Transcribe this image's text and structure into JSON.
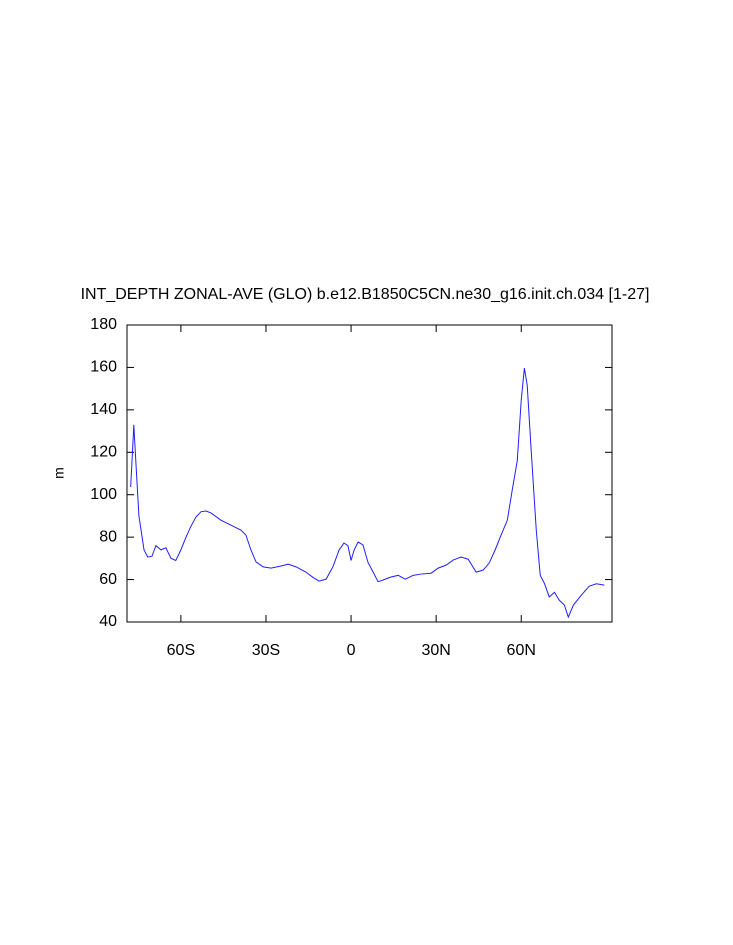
{
  "chart_data": {
    "type": "line",
    "title": "INT_DEPTH ZONAL-AVE (GLO) b.e12.B1850C5CN.ne30_g16.init.ch.034 [1-27]",
    "y_label": "m",
    "x": [
      -77.7,
      -76.6,
      -75.9,
      -74.8,
      -73,
      -71.7,
      -70.2,
      -68.8,
      -67,
      -65.3,
      -63.5,
      -61.8,
      -60,
      -58.2,
      -56.5,
      -54.7,
      -52.9,
      -51.1,
      -49.4,
      -45.9,
      -42.4,
      -38.8,
      -37.1,
      -35.3,
      -33.5,
      -31,
      -28.2,
      -24.7,
      -22.2,
      -19.4,
      -15.9,
      -13.4,
      -11.3,
      -8.8,
      -6.4,
      -4.2,
      -2.5,
      -1.1,
      0,
      1.1,
      2.5,
      4.2,
      6,
      7.8,
      9.5,
      11.3,
      14.1,
      16.6,
      19.1,
      21.9,
      24.7,
      28.2,
      30.7,
      33.5,
      36,
      38.8,
      41.3,
      44.1,
      46.6,
      48.7,
      50.8,
      52.9,
      55.1,
      56.8,
      58.6,
      60,
      61.1,
      62.1,
      63.5,
      65.3,
      66.7,
      68.1,
      69.9,
      71.7,
      73.4,
      75.2,
      76.6,
      78.4,
      81.2,
      84,
      86.5,
      89.3
    ],
    "series": [
      {
        "name": "INT_DEPTH",
        "color": "#1f1fff",
        "values": [
          103.6,
          132.9,
          116,
          90,
          74,
          70.6,
          71,
          76,
          74,
          75,
          70,
          69,
          74,
          80,
          85,
          89.5,
          92,
          92.3,
          91.4,
          88,
          85.7,
          83.3,
          81,
          74,
          68.3,
          66,
          65.4,
          66.4,
          67.3,
          66,
          63.5,
          61,
          59.3,
          60.2,
          66,
          74,
          77.2,
          76,
          69,
          74,
          77.7,
          76.3,
          68,
          63.5,
          59,
          59.8,
          61.2,
          62,
          60.2,
          62,
          62.6,
          63,
          65.4,
          66.8,
          69.2,
          70.6,
          69.6,
          63.5,
          64.5,
          67.8,
          74,
          81,
          88,
          102,
          116,
          144.6,
          159.7,
          151.7,
          121,
          83.3,
          62,
          58.4,
          51.8,
          54,
          50.3,
          48,
          42.3,
          48,
          52.7,
          56.9,
          58,
          57.4
        ]
      }
    ],
    "xlim": [
      -79,
      92
    ],
    "ylim": [
      40,
      180
    ],
    "xticks": [
      {
        "value": -60,
        "label": "60S"
      },
      {
        "value": -30,
        "label": "30S"
      },
      0,
      {
        "value": 30,
        "label": "30N"
      },
      {
        "value": 60,
        "label": "60N"
      }
    ],
    "yticks": [
      40,
      60,
      80,
      100,
      120,
      140,
      160,
      180
    ],
    "grid": false
  }
}
